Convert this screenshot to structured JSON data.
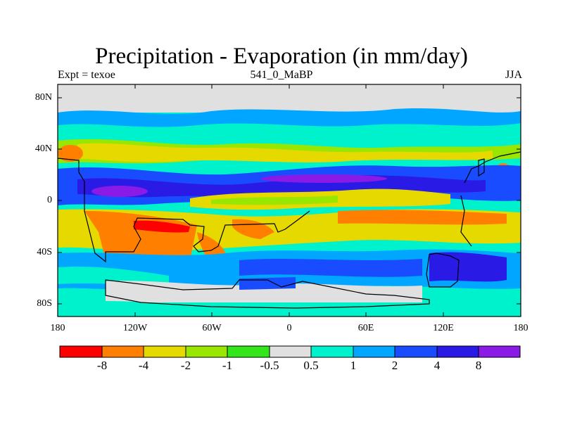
{
  "title": "Precipitation - Evaporation (in mm/day)",
  "subtitle_left": "Expt = texoe",
  "subtitle_center": "541_0_MaBP",
  "subtitle_right": "JJA",
  "y_ticks": [
    "80N",
    "40N",
    "0",
    "40S",
    "80S"
  ],
  "x_ticks": [
    "180",
    "120W",
    "60W",
    "0",
    "60E",
    "120E",
    "180"
  ],
  "colorbar": {
    "colors": [
      "#ff0000",
      "#ff8000",
      "#e6d900",
      "#99e600",
      "#33e619",
      "#e0e0e0",
      "#00f2cc",
      "#00a6ff",
      "#1a4cff",
      "#2a1ae6",
      "#8a1ae6"
    ],
    "labels": [
      "-8",
      "-4",
      "-2",
      "-1",
      "-0.5",
      "0.5",
      "1",
      "2",
      "4",
      "8"
    ]
  },
  "colors": {
    "dry_strong": "#ff0000",
    "dry": "#ff8000",
    "dry_mild": "#e6d900",
    "neutral": "#e0e0e0",
    "wet": "#00a6ff",
    "wet_strong": "#2a1ae6"
  }
}
